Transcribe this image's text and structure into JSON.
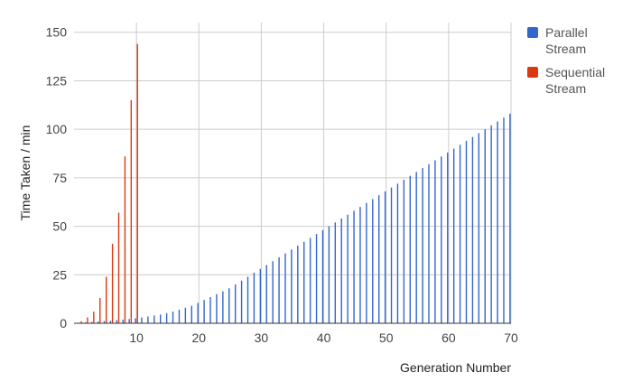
{
  "chart_data": {
    "type": "bar",
    "title": "",
    "xlabel": "Generation Number",
    "ylabel": "Time Taken / min",
    "xlim": [
      0,
      70
    ],
    "ylim": [
      0,
      155
    ],
    "x_ticks": [
      10,
      20,
      30,
      40,
      50,
      60,
      70
    ],
    "y_ticks": [
      0,
      25,
      50,
      75,
      100,
      125,
      150
    ],
    "grid": true,
    "legend_position": "right",
    "series": [
      {
        "name": "Parallel Stream",
        "color": "#3366cc",
        "x": [
          1,
          2,
          3,
          4,
          5,
          6,
          7,
          8,
          9,
          10,
          11,
          12,
          13,
          14,
          15,
          16,
          17,
          18,
          19,
          20,
          21,
          22,
          23,
          24,
          25,
          26,
          27,
          28,
          29,
          30,
          31,
          32,
          33,
          34,
          35,
          36,
          37,
          38,
          39,
          40,
          41,
          42,
          43,
          44,
          45,
          46,
          47,
          48,
          49,
          50,
          51,
          52,
          53,
          54,
          55,
          56,
          57,
          58,
          59,
          60,
          61,
          62,
          63,
          64,
          65,
          66,
          67,
          68,
          69,
          70
        ],
        "values": [
          0.3,
          0.5,
          0.7,
          0.9,
          1.1,
          1.3,
          1.6,
          1.9,
          2.2,
          2.5,
          3,
          3.5,
          4,
          4.5,
          5.2,
          6,
          7,
          8,
          9,
          10.5,
          12,
          13.5,
          15,
          16.5,
          18,
          20,
          22,
          24,
          26,
          28,
          30,
          32,
          34,
          36,
          38,
          40,
          42,
          44,
          46,
          48,
          50,
          52,
          54,
          56,
          58,
          60,
          62,
          64,
          66,
          68,
          70,
          72,
          74,
          76,
          78,
          80,
          82,
          84,
          86,
          88,
          90,
          92,
          94,
          96,
          98,
          100,
          102,
          104,
          106,
          108
        ]
      },
      {
        "name": "Sequential Stream",
        "color": "#dc3912",
        "x": [
          1,
          2,
          3,
          4,
          5,
          6,
          7,
          8,
          9,
          10
        ],
        "values": [
          1,
          3,
          6,
          13,
          24,
          41,
          57,
          86,
          115,
          144
        ]
      }
    ]
  },
  "legend": [
    {
      "lines": [
        "Parallel",
        "Stream"
      ],
      "color": "#3366cc"
    },
    {
      "lines": [
        "Sequential",
        "Stream"
      ],
      "color": "#dc3912"
    }
  ]
}
